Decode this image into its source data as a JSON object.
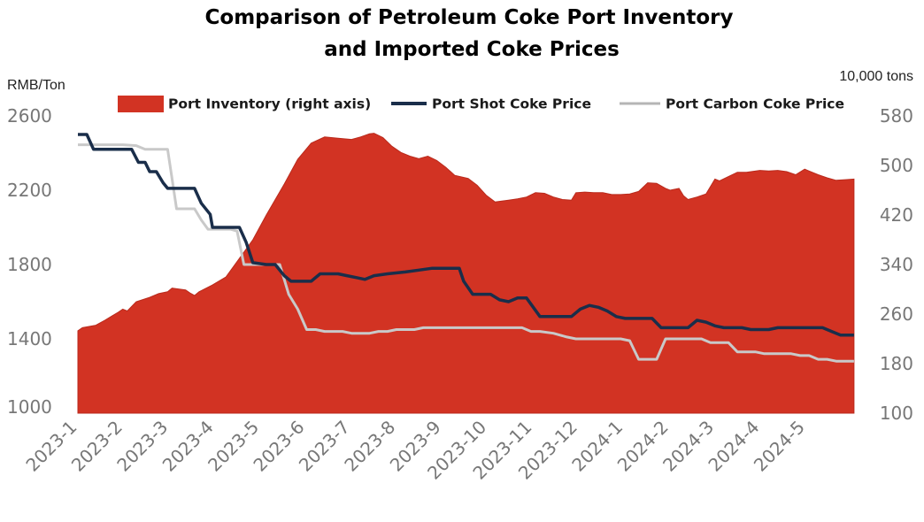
{
  "chart_data": {
    "type": "area",
    "title_lines": [
      "Comparison of Petroleum Coke Port Inventory",
      "and Imported Coke Prices"
    ],
    "left_axis": {
      "label": "RMB/Ton",
      "ylim": [
        1000,
        2600
      ],
      "ticks": [
        "2600",
        "2200",
        "1800",
        "1400",
        "1000"
      ],
      "tick_values": [
        2600,
        2200,
        1800,
        1400,
        1000
      ]
    },
    "right_axis": {
      "label": "10,000 tons",
      "ylim": [
        100,
        580
      ],
      "ticks": [
        "580",
        "500",
        "420",
        "340",
        "260",
        "180",
        "100"
      ],
      "tick_values": [
        580,
        500,
        420,
        340,
        260,
        180,
        100
      ]
    },
    "x_tick_labels": [
      "2023-1",
      "2023-2",
      "2023-3",
      "2023-4",
      "2023-5",
      "2023-6",
      "2023-7",
      "2023-8",
      "2023-9",
      "2023-10",
      "2023-11",
      "2023-12",
      "2024-1",
      "2024-2",
      "2024-3",
      "2024-4",
      "2024-5"
    ],
    "x_range": [
      0,
      17.4
    ],
    "grid": false,
    "legend_position": "top",
    "series": [
      {
        "name": "Port Inventory (right axis)",
        "kind": "area",
        "axis": "right",
        "color": "#d23323",
        "points": [
          [
            0,
            233
          ],
          [
            0.1,
            238
          ],
          [
            0.4,
            242
          ],
          [
            0.6,
            250
          ],
          [
            0.9,
            263
          ],
          [
            1.0,
            268
          ],
          [
            1.1,
            265
          ],
          [
            1.3,
            280
          ],
          [
            1.6,
            287
          ],
          [
            1.8,
            293
          ],
          [
            2.0,
            296
          ],
          [
            2.1,
            302
          ],
          [
            2.4,
            299
          ],
          [
            2.5,
            294
          ],
          [
            2.6,
            290
          ],
          [
            2.7,
            296
          ],
          [
            3.0,
            307
          ],
          [
            3.3,
            320
          ],
          [
            3.6,
            350
          ],
          [
            3.9,
            380
          ],
          [
            4.2,
            420
          ],
          [
            4.6,
            470
          ],
          [
            4.9,
            510
          ],
          [
            5.2,
            536
          ],
          [
            5.5,
            546
          ],
          [
            5.8,
            544
          ],
          [
            6.1,
            542
          ],
          [
            6.3,
            546
          ],
          [
            6.5,
            551
          ],
          [
            6.6,
            552
          ],
          [
            6.8,
            545
          ],
          [
            7.0,
            531
          ],
          [
            7.2,
            521
          ],
          [
            7.4,
            515
          ],
          [
            7.6,
            511
          ],
          [
            7.8,
            515
          ],
          [
            8.0,
            508
          ],
          [
            8.2,
            497
          ],
          [
            8.4,
            484
          ],
          [
            8.7,
            479
          ],
          [
            8.9,
            468
          ],
          [
            9.1,
            452
          ],
          [
            9.3,
            441
          ],
          [
            9.6,
            444
          ],
          [
            9.8,
            446
          ],
          [
            10.0,
            449
          ],
          [
            10.2,
            456
          ],
          [
            10.4,
            455
          ],
          [
            10.6,
            449
          ],
          [
            10.8,
            445
          ],
          [
            11.0,
            444
          ],
          [
            11.1,
            456
          ],
          [
            11.3,
            457
          ],
          [
            11.5,
            456
          ],
          [
            11.7,
            456
          ],
          [
            11.9,
            453
          ],
          [
            12.1,
            453
          ],
          [
            12.3,
            454
          ],
          [
            12.5,
            458
          ],
          [
            12.7,
            472
          ],
          [
            12.9,
            471
          ],
          [
            13.1,
            463
          ],
          [
            13.2,
            460
          ],
          [
            13.4,
            463
          ],
          [
            13.5,
            451
          ],
          [
            13.6,
            445
          ],
          [
            13.8,
            449
          ],
          [
            14.0,
            454
          ],
          [
            14.2,
            478
          ],
          [
            14.3,
            475
          ],
          [
            14.5,
            482
          ],
          [
            14.7,
            489
          ],
          [
            14.9,
            489
          ],
          [
            15.2,
            492
          ],
          [
            15.4,
            491
          ],
          [
            15.6,
            492
          ],
          [
            15.8,
            490
          ],
          [
            16.0,
            485
          ],
          [
            16.2,
            494
          ],
          [
            16.3,
            491
          ],
          [
            16.5,
            485
          ],
          [
            16.7,
            480
          ],
          [
            16.9,
            476
          ],
          [
            17.1,
            477
          ],
          [
            17.3,
            478
          ]
        ]
      },
      {
        "name": "Port Shot Coke Price",
        "kind": "line",
        "axis": "left",
        "color": "#1a2e4a",
        "points": [
          [
            0,
            2500
          ],
          [
            0.2,
            2500
          ],
          [
            0.35,
            2420
          ],
          [
            0.6,
            2420
          ],
          [
            1.0,
            2420
          ],
          [
            1.2,
            2420
          ],
          [
            1.35,
            2350
          ],
          [
            1.5,
            2350
          ],
          [
            1.6,
            2300
          ],
          [
            1.75,
            2300
          ],
          [
            1.9,
            2240
          ],
          [
            2.0,
            2210
          ],
          [
            2.3,
            2210
          ],
          [
            2.6,
            2210
          ],
          [
            2.75,
            2130
          ],
          [
            2.95,
            2070
          ],
          [
            3.0,
            2000
          ],
          [
            3.3,
            2000
          ],
          [
            3.5,
            2000
          ],
          [
            3.6,
            2000
          ],
          [
            3.75,
            1920
          ],
          [
            3.9,
            1810
          ],
          [
            4.2,
            1800
          ],
          [
            4.4,
            1800
          ],
          [
            4.6,
            1740
          ],
          [
            4.75,
            1710
          ],
          [
            5.0,
            1710
          ],
          [
            5.2,
            1710
          ],
          [
            5.4,
            1750
          ],
          [
            5.8,
            1750
          ],
          [
            6.0,
            1740
          ],
          [
            6.2,
            1730
          ],
          [
            6.4,
            1720
          ],
          [
            6.6,
            1740
          ],
          [
            6.9,
            1750
          ],
          [
            7.3,
            1760
          ],
          [
            7.6,
            1770
          ],
          [
            7.9,
            1780
          ],
          [
            8.2,
            1780
          ],
          [
            8.5,
            1780
          ],
          [
            8.6,
            1710
          ],
          [
            8.8,
            1640
          ],
          [
            9.2,
            1640
          ],
          [
            9.4,
            1610
          ],
          [
            9.6,
            1600
          ],
          [
            9.8,
            1620
          ],
          [
            10.0,
            1620
          ],
          [
            10.3,
            1520
          ],
          [
            10.6,
            1520
          ],
          [
            10.8,
            1520
          ],
          [
            11.0,
            1520
          ],
          [
            11.2,
            1560
          ],
          [
            11.4,
            1580
          ],
          [
            11.6,
            1570
          ],
          [
            11.8,
            1550
          ],
          [
            12.0,
            1520
          ],
          [
            12.2,
            1510
          ],
          [
            12.4,
            1510
          ],
          [
            12.6,
            1510
          ],
          [
            12.8,
            1510
          ],
          [
            13.0,
            1460
          ],
          [
            13.4,
            1460
          ],
          [
            13.6,
            1460
          ],
          [
            13.8,
            1500
          ],
          [
            14.0,
            1490
          ],
          [
            14.2,
            1470
          ],
          [
            14.4,
            1460
          ],
          [
            14.6,
            1460
          ],
          [
            14.8,
            1460
          ],
          [
            15.0,
            1450
          ],
          [
            15.2,
            1450
          ],
          [
            15.4,
            1450
          ],
          [
            15.6,
            1460
          ],
          [
            15.8,
            1460
          ],
          [
            16.0,
            1460
          ],
          [
            16.2,
            1460
          ],
          [
            16.4,
            1460
          ],
          [
            16.6,
            1460
          ],
          [
            16.8,
            1440
          ],
          [
            17.0,
            1420
          ],
          [
            17.3,
            1420
          ]
        ]
      },
      {
        "name": "Port Carbon Coke Price",
        "kind": "line",
        "axis": "left",
        "color": "#c9c9c9",
        "points": [
          [
            0,
            2445
          ],
          [
            0.2,
            2445
          ],
          [
            0.5,
            2445
          ],
          [
            1.0,
            2445
          ],
          [
            1.3,
            2440
          ],
          [
            1.5,
            2420
          ],
          [
            1.8,
            2420
          ],
          [
            2.0,
            2420
          ],
          [
            2.2,
            2100
          ],
          [
            2.4,
            2100
          ],
          [
            2.6,
            2100
          ],
          [
            2.75,
            2040
          ],
          [
            2.9,
            1990
          ],
          [
            3.2,
            1990
          ],
          [
            3.4,
            1990
          ],
          [
            3.55,
            1980
          ],
          [
            3.7,
            1800
          ],
          [
            3.9,
            1800
          ],
          [
            4.1,
            1800
          ],
          [
            4.3,
            1800
          ],
          [
            4.5,
            1800
          ],
          [
            4.7,
            1640
          ],
          [
            4.9,
            1560
          ],
          [
            5.1,
            1450
          ],
          [
            5.3,
            1450
          ],
          [
            5.5,
            1440
          ],
          [
            5.7,
            1440
          ],
          [
            5.9,
            1440
          ],
          [
            6.1,
            1430
          ],
          [
            6.3,
            1430
          ],
          [
            6.5,
            1430
          ],
          [
            6.7,
            1440
          ],
          [
            6.9,
            1440
          ],
          [
            7.1,
            1450
          ],
          [
            7.3,
            1450
          ],
          [
            7.5,
            1450
          ],
          [
            7.7,
            1460
          ],
          [
            7.9,
            1460
          ],
          [
            8.1,
            1460
          ],
          [
            8.3,
            1460
          ],
          [
            8.5,
            1460
          ],
          [
            8.7,
            1460
          ],
          [
            8.9,
            1460
          ],
          [
            9.1,
            1460
          ],
          [
            9.3,
            1460
          ],
          [
            9.5,
            1460
          ],
          [
            9.7,
            1460
          ],
          [
            9.9,
            1460
          ],
          [
            10.1,
            1440
          ],
          [
            10.3,
            1440
          ],
          [
            10.6,
            1430
          ],
          [
            10.9,
            1410
          ],
          [
            11.1,
            1400
          ],
          [
            11.3,
            1400
          ],
          [
            11.5,
            1400
          ],
          [
            11.7,
            1400
          ],
          [
            11.9,
            1400
          ],
          [
            12.1,
            1400
          ],
          [
            12.3,
            1390
          ],
          [
            12.5,
            1290
          ],
          [
            12.7,
            1290
          ],
          [
            12.9,
            1290
          ],
          [
            13.1,
            1400
          ],
          [
            13.3,
            1400
          ],
          [
            13.5,
            1400
          ],
          [
            13.7,
            1400
          ],
          [
            13.9,
            1400
          ],
          [
            14.1,
            1380
          ],
          [
            14.3,
            1380
          ],
          [
            14.5,
            1380
          ],
          [
            14.7,
            1330
          ],
          [
            14.9,
            1330
          ],
          [
            15.1,
            1330
          ],
          [
            15.3,
            1320
          ],
          [
            15.5,
            1320
          ],
          [
            15.7,
            1320
          ],
          [
            15.9,
            1320
          ],
          [
            16.1,
            1310
          ],
          [
            16.3,
            1310
          ],
          [
            16.5,
            1290
          ],
          [
            16.7,
            1290
          ],
          [
            16.9,
            1280
          ],
          [
            17.1,
            1280
          ],
          [
            17.3,
            1280
          ]
        ]
      }
    ]
  }
}
